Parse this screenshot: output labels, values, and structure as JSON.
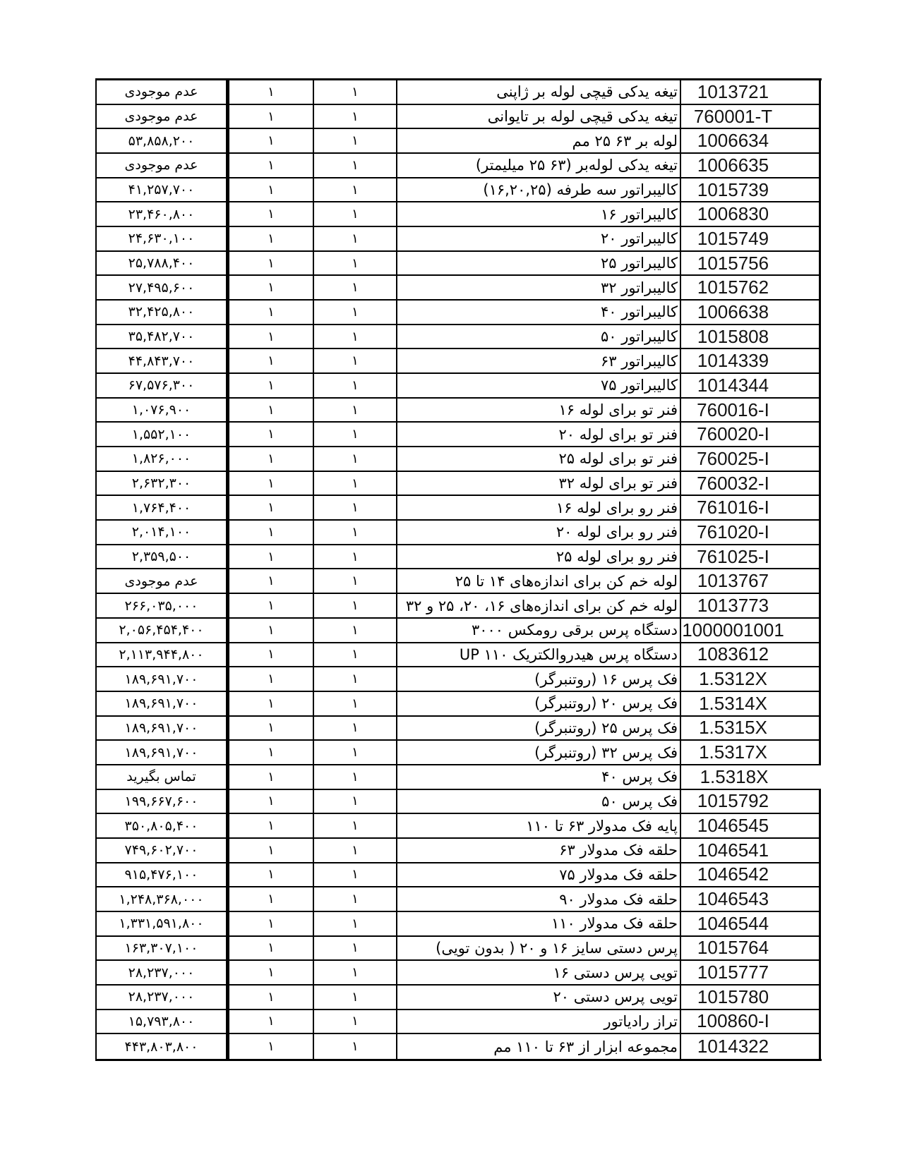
{
  "page": {
    "background_color": "#ffffff",
    "text_color": "#000000",
    "border_color": "#000000"
  },
  "table": {
    "columns": [
      "price",
      "quantity_left",
      "quantity_right",
      "description",
      "code"
    ],
    "status_labels": {
      "unavailable": "عدم موجودی",
      "call_for_price": "تماس بگیرید"
    },
    "rows": [
      {
        "code": "1013721",
        "desc": "تیغه یدکی قیچی لوله بر ژاپنی",
        "qty_l": "۱",
        "qty_r": "۱",
        "price": "عدم موجودی"
      },
      {
        "code": "760001-T",
        "desc": "تیغه یدکی قیچی لوله بر تایوانی",
        "qty_l": "۱",
        "qty_r": "۱",
        "price": "عدم موجودی"
      },
      {
        "code": "1006634",
        "desc": "لوله بر ۶۳ ۲۵ مم",
        "qty_l": "۱",
        "qty_r": "۱",
        "price": "۵۳,۸۵۸,۲۰۰"
      },
      {
        "code": "1006635",
        "desc": "تیغه یدکی لوله‌بر (۶۳ ۲۵ میلیمتر)",
        "qty_l": "۱",
        "qty_r": "۱",
        "price": "عدم موجودی"
      },
      {
        "code": "1015739",
        "desc": "کالیبراتور سه طرفه (۱۶,۲۰,۲۵)",
        "qty_l": "۱",
        "qty_r": "۱",
        "price": "۴۱,۲۵۷,۷۰۰"
      },
      {
        "code": "1006830",
        "desc": "کالیبراتور ۱۶",
        "qty_l": "۱",
        "qty_r": "۱",
        "price": "۲۳,۴۶۰,۸۰۰"
      },
      {
        "code": "1015749",
        "desc": "کالیبراتور ۲۰",
        "qty_l": "۱",
        "qty_r": "۱",
        "price": "۲۴,۶۳۰,۱۰۰"
      },
      {
        "code": "1015756",
        "desc": "کالیبراتور ۲۵",
        "qty_l": "۱",
        "qty_r": "۱",
        "price": "۲۵,۷۸۸,۴۰۰"
      },
      {
        "code": "1015762",
        "desc": "کالیبراتور ۳۲",
        "qty_l": "۱",
        "qty_r": "۱",
        "price": "۲۷,۴۹۵,۶۰۰"
      },
      {
        "code": "1006638",
        "desc": "کالیبراتور ۴۰",
        "qty_l": "۱",
        "qty_r": "۱",
        "price": "۳۲,۴۲۵,۸۰۰"
      },
      {
        "code": "1015808",
        "desc": "کالیبراتور ۵۰",
        "qty_l": "۱",
        "qty_r": "۱",
        "price": "۳۵,۴۸۲,۷۰۰"
      },
      {
        "code": "1014339",
        "desc": "کالیبراتور ۶۳",
        "qty_l": "۱",
        "qty_r": "۱",
        "price": "۴۴,۸۴۳,۷۰۰"
      },
      {
        "code": "1014344",
        "desc": "کالیبراتور ۷۵",
        "qty_l": "۱",
        "qty_r": "۱",
        "price": "۶۷,۵۷۶,۳۰۰"
      },
      {
        "code": "760016-I",
        "desc": "فنر تو برای لوله ۱۶",
        "qty_l": "۱",
        "qty_r": "۱",
        "price": "۱,۰۷۶,۹۰۰"
      },
      {
        "code": "760020-I",
        "desc": "فنر تو برای لوله ۲۰",
        "qty_l": "۱",
        "qty_r": "۱",
        "price": "۱,۵۵۲,۱۰۰"
      },
      {
        "code": "760025-I",
        "desc": "فنر تو برای لوله ۲۵",
        "qty_l": "۱",
        "qty_r": "۱",
        "price": "۱,۸۲۶,۰۰۰"
      },
      {
        "code": "760032-I",
        "desc": "فنر تو برای لوله ۳۲",
        "qty_l": "۱",
        "qty_r": "۱",
        "price": "۲,۶۳۲,۳۰۰"
      },
      {
        "code": "761016-I",
        "desc": "فنر رو برای لوله ۱۶",
        "qty_l": "۱",
        "qty_r": "۱",
        "price": "۱,۷۶۴,۴۰۰"
      },
      {
        "code": "761020-I",
        "desc": "فنر رو برای لوله ۲۰",
        "qty_l": "۱",
        "qty_r": "۱",
        "price": "۲,۰۱۴,۱۰۰"
      },
      {
        "code": "761025-I",
        "desc": "فنر رو برای لوله ۲۵",
        "qty_l": "۱",
        "qty_r": "۱",
        "price": "۲,۳۵۹,۵۰۰"
      },
      {
        "code": "1013767",
        "desc": "لوله خم کن برای اندازه‌های ۱۴ تا ۲۵",
        "qty_l": "۱",
        "qty_r": "۱",
        "price": "عدم موجودی"
      },
      {
        "code": "1013773",
        "desc": "لوله خم کن برای اندازه‌های ۱۶، ۲۰، ۲۵ و ۳۲",
        "qty_l": "۱",
        "qty_r": "۱",
        "price": "۲۶۶,۰۳۵,۰۰۰"
      },
      {
        "code": "1000001001",
        "desc": "دستگاه پرس برقی رومکس ۳۰۰۰",
        "qty_l": "۱",
        "qty_r": "۱",
        "price": "۲,۰۵۶,۴۵۴,۴۰۰"
      },
      {
        "code": "1083612",
        "desc": "دستگاه پرس هیدروالکتریک ۱۱۰ UP",
        "qty_l": "۱",
        "qty_r": "۱",
        "price": "۲,۱۱۳,۹۴۴,۸۰۰"
      },
      {
        "code": "1.5312X",
        "desc": "فک پرس ۱۶ (روتنبرگر)",
        "qty_l": "۱",
        "qty_r": "۱",
        "price": "۱۸۹,۶۹۱,۷۰۰"
      },
      {
        "code": "1.5314X",
        "desc": "فک پرس ۲۰ (روتنبرگر)",
        "qty_l": "۱",
        "qty_r": "۱",
        "price": "۱۸۹,۶۹۱,۷۰۰"
      },
      {
        "code": "1.5315X",
        "desc": "فک پرس ۲۵ (روتنبرگر)",
        "qty_l": "۱",
        "qty_r": "۱",
        "price": "۱۸۹,۶۹۱,۷۰۰"
      },
      {
        "code": "1.5317X",
        "desc": "فک پرس ۳۲ (روتنبرگر)",
        "qty_l": "۱",
        "qty_r": "۱",
        "price": "۱۸۹,۶۹۱,۷۰۰"
      },
      {
        "code": "1.5318X",
        "desc": "فک پرس ۴۰",
        "qty_l": "۱",
        "qty_r": "۱",
        "price": "تماس بگیرید",
        "frame_break": true
      },
      {
        "code": "1015792",
        "desc": "فک پرس ۵۰",
        "qty_l": "۱",
        "qty_r": "۱",
        "price": "۱۹۹,۶۶۷,۶۰۰"
      },
      {
        "code": "1046545",
        "desc": "پایه فک مدولار ۶۳ تا ۱۱۰",
        "qty_l": "۱",
        "qty_r": "۱",
        "price": "۳۵۰,۸۰۵,۴۰۰"
      },
      {
        "code": "1046541",
        "desc": "حلقه فک مدولار ۶۳",
        "qty_l": "۱",
        "qty_r": "۱",
        "price": "۷۴۹,۶۰۲,۷۰۰"
      },
      {
        "code": "1046542",
        "desc": "حلقه فک مدولار ۷۵",
        "qty_l": "۱",
        "qty_r": "۱",
        "price": "۹۱۵,۴۷۶,۱۰۰"
      },
      {
        "code": "1046543",
        "desc": "حلقه فک مدولار ۹۰",
        "qty_l": "۱",
        "qty_r": "۱",
        "price": "۱,۲۴۸,۳۶۸,۰۰۰"
      },
      {
        "code": "1046544",
        "desc": "حلقه فک مدولار ۱۱۰",
        "qty_l": "۱",
        "qty_r": "۱",
        "price": "۱,۳۳۱,۵۹۱,۸۰۰"
      },
      {
        "code": "1015764",
        "desc": "پرس دستی سایز ۱۶ و ۲۰ ( بدون تویی)",
        "qty_l": "۱",
        "qty_r": "۱",
        "price": "۱۶۳,۳۰۷,۱۰۰"
      },
      {
        "code": "1015777",
        "desc": "تویی پرس دستی ۱۶",
        "qty_l": "۱",
        "qty_r": "۱",
        "price": "۲۸,۲۳۷,۰۰۰"
      },
      {
        "code": "1015780",
        "desc": "تویی پرس دستی ۲۰",
        "qty_l": "۱",
        "qty_r": "۱",
        "price": "۲۸,۲۳۷,۰۰۰"
      },
      {
        "code": "100860-I",
        "desc": "تراز رادیاتور",
        "qty_l": "۱",
        "qty_r": "۱",
        "price": "۱۵,۷۹۳,۸۰۰"
      },
      {
        "code": "1014322",
        "desc": "مجموعه ابزار از ۶۳ تا ۱۱۰ مم",
        "qty_l": "۱",
        "qty_r": "۱",
        "price": "۴۴۳,۸۰۳,۸۰۰"
      }
    ]
  }
}
